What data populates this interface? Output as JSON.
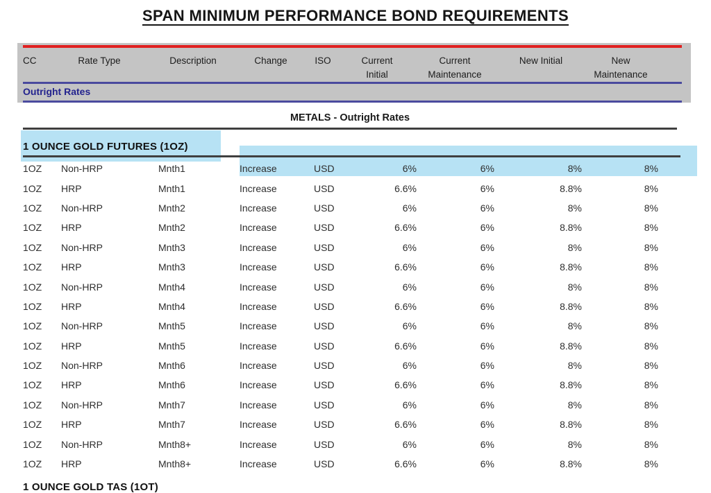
{
  "page": {
    "title": "SPAN MINIMUM PERFORMANCE BOND REQUIREMENTS"
  },
  "header": {
    "columns": [
      "CC",
      "Rate Type",
      "Description",
      "Change",
      "ISO",
      "Current\nInitial",
      "Current\nMaintenance",
      "New Initial",
      "New\nMaintenance"
    ],
    "section_label": "Outright Rates"
  },
  "body": {
    "group_heading": "METALS - Outright Rates",
    "section_title": "1 OUNCE GOLD FUTURES (1OZ)",
    "next_section_title": "1 OUNCE GOLD TAS (1OT)"
  },
  "colors": {
    "accent_red": "#e02020",
    "navy_text": "#23238e",
    "blue_line": "#4a4a9e",
    "gray_bar": "#c4c4c4",
    "highlight_cyan": "rgba(124,202,235,0.55)",
    "dark_line": "#3f3f3f"
  },
  "table": {
    "rows": [
      {
        "cc": "1OZ",
        "rate_type": "Non-HRP",
        "description": "Mnth1",
        "change": "Increase",
        "iso": "USD",
        "current_initial": "6%",
        "current_maintenance": "6%",
        "new_initial": "8%",
        "new_maintenance": "8%"
      },
      {
        "cc": "1OZ",
        "rate_type": "HRP",
        "description": "Mnth1",
        "change": "Increase",
        "iso": "USD",
        "current_initial": "6.6%",
        "current_maintenance": "6%",
        "new_initial": "8.8%",
        "new_maintenance": "8%"
      },
      {
        "cc": "1OZ",
        "rate_type": "Non-HRP",
        "description": "Mnth2",
        "change": "Increase",
        "iso": "USD",
        "current_initial": "6%",
        "current_maintenance": "6%",
        "new_initial": "8%",
        "new_maintenance": "8%"
      },
      {
        "cc": "1OZ",
        "rate_type": "HRP",
        "description": "Mnth2",
        "change": "Increase",
        "iso": "USD",
        "current_initial": "6.6%",
        "current_maintenance": "6%",
        "new_initial": "8.8%",
        "new_maintenance": "8%"
      },
      {
        "cc": "1OZ",
        "rate_type": "Non-HRP",
        "description": "Mnth3",
        "change": "Increase",
        "iso": "USD",
        "current_initial": "6%",
        "current_maintenance": "6%",
        "new_initial": "8%",
        "new_maintenance": "8%"
      },
      {
        "cc": "1OZ",
        "rate_type": "HRP",
        "description": "Mnth3",
        "change": "Increase",
        "iso": "USD",
        "current_initial": "6.6%",
        "current_maintenance": "6%",
        "new_initial": "8.8%",
        "new_maintenance": "8%"
      },
      {
        "cc": "1OZ",
        "rate_type": "Non-HRP",
        "description": "Mnth4",
        "change": "Increase",
        "iso": "USD",
        "current_initial": "6%",
        "current_maintenance": "6%",
        "new_initial": "8%",
        "new_maintenance": "8%"
      },
      {
        "cc": "1OZ",
        "rate_type": "HRP",
        "description": "Mnth4",
        "change": "Increase",
        "iso": "USD",
        "current_initial": "6.6%",
        "current_maintenance": "6%",
        "new_initial": "8.8%",
        "new_maintenance": "8%"
      },
      {
        "cc": "1OZ",
        "rate_type": "Non-HRP",
        "description": "Mnth5",
        "change": "Increase",
        "iso": "USD",
        "current_initial": "6%",
        "current_maintenance": "6%",
        "new_initial": "8%",
        "new_maintenance": "8%"
      },
      {
        "cc": "1OZ",
        "rate_type": "HRP",
        "description": "Mnth5",
        "change": "Increase",
        "iso": "USD",
        "current_initial": "6.6%",
        "current_maintenance": "6%",
        "new_initial": "8.8%",
        "new_maintenance": "8%"
      },
      {
        "cc": "1OZ",
        "rate_type": "Non-HRP",
        "description": "Mnth6",
        "change": "Increase",
        "iso": "USD",
        "current_initial": "6%",
        "current_maintenance": "6%",
        "new_initial": "8%",
        "new_maintenance": "8%"
      },
      {
        "cc": "1OZ",
        "rate_type": "HRP",
        "description": "Mnth6",
        "change": "Increase",
        "iso": "USD",
        "current_initial": "6.6%",
        "current_maintenance": "6%",
        "new_initial": "8.8%",
        "new_maintenance": "8%"
      },
      {
        "cc": "1OZ",
        "rate_type": "Non-HRP",
        "description": "Mnth7",
        "change": "Increase",
        "iso": "USD",
        "current_initial": "6%",
        "current_maintenance": "6%",
        "new_initial": "8%",
        "new_maintenance": "8%"
      },
      {
        "cc": "1OZ",
        "rate_type": "HRP",
        "description": "Mnth7",
        "change": "Increase",
        "iso": "USD",
        "current_initial": "6.6%",
        "current_maintenance": "6%",
        "new_initial": "8.8%",
        "new_maintenance": "8%"
      },
      {
        "cc": "1OZ",
        "rate_type": "Non-HRP",
        "description": "Mnth8+",
        "change": "Increase",
        "iso": "USD",
        "current_initial": "6%",
        "current_maintenance": "6%",
        "new_initial": "8%",
        "new_maintenance": "8%"
      },
      {
        "cc": "1OZ",
        "rate_type": "HRP",
        "description": "Mnth8+",
        "change": "Increase",
        "iso": "USD",
        "current_initial": "6.6%",
        "current_maintenance": "6%",
        "new_initial": "8.8%",
        "new_maintenance": "8%"
      }
    ]
  }
}
